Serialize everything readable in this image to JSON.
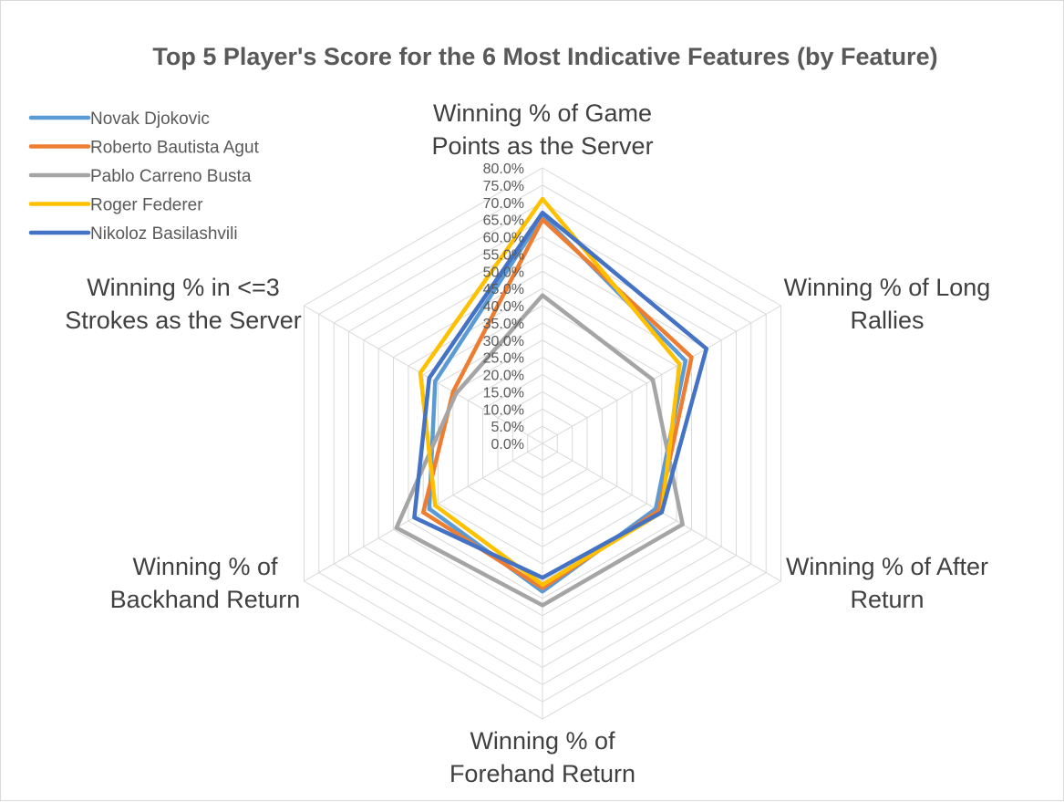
{
  "chart_data": {
    "type": "radar",
    "title": "Top 5 Player's Score for the 6 Most Indicative Features (by Feature)",
    "categories": [
      [
        "Winning % of Game",
        "Points as the Server"
      ],
      [
        "Winning % of Long",
        "Rallies"
      ],
      [
        "Winning % of After",
        "Return"
      ],
      [
        "Winning % of",
        "Forehand Return"
      ],
      [
        "Winning % of",
        "Backhand Return"
      ],
      [
        "Winning % in <=3",
        "Strokes as the Server"
      ]
    ],
    "r_ticks": [
      "0.0%",
      "5.0%",
      "10.0%",
      "15.0%",
      "20.0%",
      "25.0%",
      "30.0%",
      "35.0%",
      "40.0%",
      "45.0%",
      "50.0%",
      "55.0%",
      "60.0%",
      "65.0%",
      "70.0%",
      "75.0%",
      "80.0%"
    ],
    "rlim": [
      0,
      80
    ],
    "grid": true,
    "legend_position": "top-left",
    "series": [
      {
        "name": "Novak Djokovic",
        "color": "#5B9BD5",
        "values": [
          66,
          48,
          38,
          43,
          38,
          36
        ]
      },
      {
        "name": "Roberto Bautista Agut",
        "color": "#ED7D31",
        "values": [
          65,
          50,
          39,
          42,
          40,
          30
        ]
      },
      {
        "name": "Pablo Carreno Busta",
        "color": "#A5A5A5",
        "values": [
          43,
          37,
          47,
          47,
          49,
          29
        ]
      },
      {
        "name": "Roger Federer",
        "color": "#FFC000",
        "values": [
          71,
          46,
          40,
          41,
          36,
          41
        ]
      },
      {
        "name": "Nikoloz Basilashvili",
        "color": "#4472C4",
        "values": [
          67,
          55,
          40,
          39,
          43,
          38
        ]
      }
    ]
  }
}
